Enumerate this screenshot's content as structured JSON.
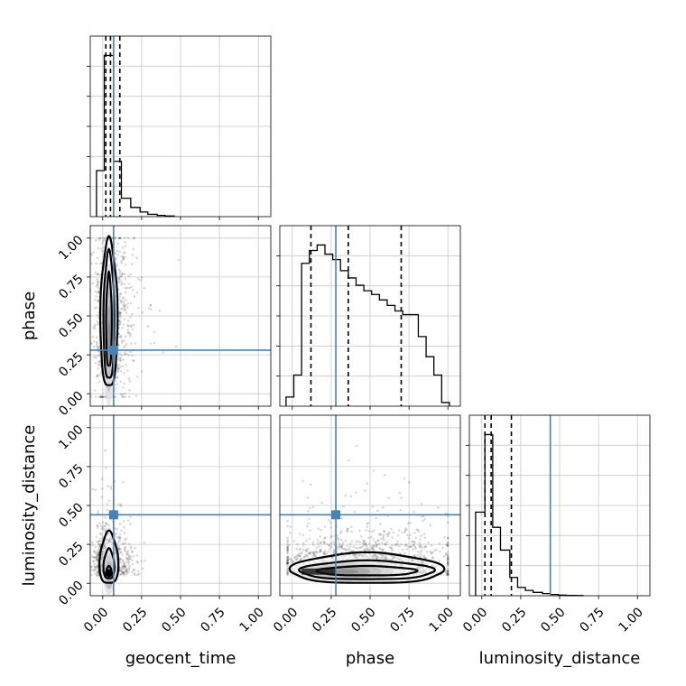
{
  "chart_data": {
    "type": "corner",
    "parameters": [
      "geocent_time",
      "phase",
      "luminosity_distance"
    ],
    "axis_range": [
      -0.08,
      1.08
    ],
    "ticks": [
      0.0,
      0.25,
      0.5,
      0.75,
      1.0
    ],
    "tick_labels": [
      "0.00",
      "0.25",
      "0.50",
      "0.75",
      "1.00"
    ],
    "grid": true,
    "truth": {
      "geocent_time": 0.07,
      "phase": 0.28,
      "luminosity_distance": 0.44
    },
    "truth_color": "#4682b4",
    "quantiles": {
      "geocent_time": [
        0.02,
        0.05,
        0.11
      ],
      "phase": [
        0.12,
        0.36,
        0.7
      ],
      "luminosity_distance": [
        0.02,
        0.06,
        0.19
      ]
    },
    "histograms": {
      "geocent_time": {
        "edges": [
          -0.04,
          0.01,
          0.07,
          0.12,
          0.18,
          0.24,
          0.29,
          0.35,
          0.4,
          0.46
        ],
        "counts": [
          0.3,
          1.05,
          0.36,
          0.12,
          0.06,
          0.03,
          0.015,
          0.008,
          0.004
        ]
      },
      "phase": {
        "edges": [
          -0.04,
          0.01,
          0.06,
          0.11,
          0.16,
          0.21,
          0.26,
          0.31,
          0.36,
          0.41,
          0.46,
          0.51,
          0.56,
          0.61,
          0.66,
          0.71,
          0.76,
          0.81,
          0.86,
          0.91,
          0.96,
          1.01
        ],
        "counts": [
          0.05,
          0.17,
          0.78,
          0.85,
          0.88,
          0.83,
          0.8,
          0.74,
          0.7,
          0.66,
          0.63,
          0.61,
          0.58,
          0.55,
          0.52,
          0.5,
          0.5,
          0.38,
          0.27,
          0.17,
          0.02
        ]
      },
      "luminosity_distance": {
        "edges": [
          -0.04,
          0.02,
          0.07,
          0.12,
          0.18,
          0.23,
          0.28,
          0.33,
          0.39,
          0.44,
          0.49,
          0.54,
          0.6,
          0.65
        ],
        "counts": [
          0.55,
          1.06,
          0.45,
          0.3,
          0.12,
          0.055,
          0.035,
          0.022,
          0.014,
          0.008,
          0.004,
          0.002,
          0.001
        ]
      }
    },
    "contours": {
      "phase_vs_geocent_time": {
        "center": [
          0.04,
          0.42
        ],
        "levels": [
          {
            "rx": 0.055,
            "ry_top": 0.57,
            "ry_bottom": 0.38
          },
          {
            "rx": 0.035,
            "ry_top": 0.49,
            "ry_bottom": 0.33
          },
          {
            "rx": 0.018,
            "ry_top": 0.35,
            "ry_bottom": 0.25
          }
        ]
      },
      "luminosity_distance_vs_geocent_time": {
        "center": [
          0.04,
          0.08
        ],
        "levels": [
          {
            "rx": 0.06,
            "ry_top": 0.25,
            "ry_bottom": 0.08
          },
          {
            "rx": 0.035,
            "ry_top": 0.14,
            "ry_bottom": 0.05
          },
          {
            "rx": 0.015,
            "ry_top": 0.03,
            "ry_bottom": 0.02
          }
        ]
      },
      "luminosity_distance_vs_phase": {
        "center": [
          0.48,
          0.075
        ],
        "levels": [
          {
            "rx": 0.49,
            "ry_top": 0.12,
            "ry_bottom": 0.075
          },
          {
            "rx": 0.43,
            "ry_top": 0.07,
            "ry_bottom": 0.05
          },
          {
            "rx": 0.32,
            "ry_top": 0.035,
            "ry_bottom": 0.025
          }
        ]
      }
    }
  }
}
